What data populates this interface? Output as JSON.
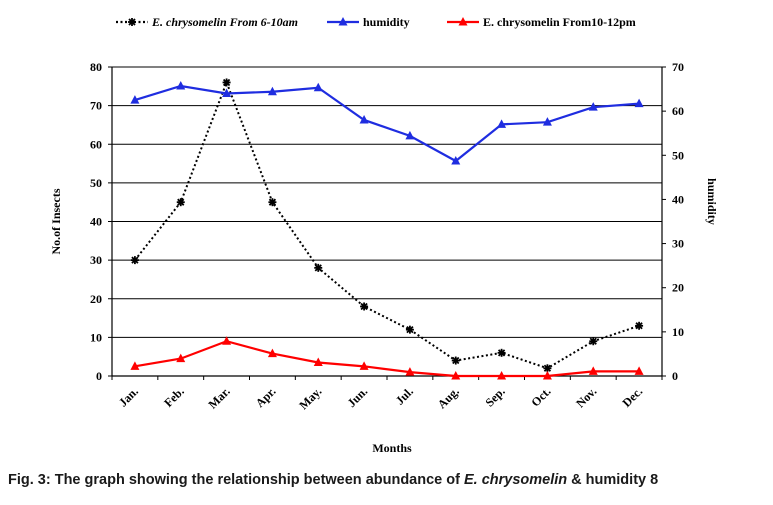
{
  "chart_data": {
    "type": "line",
    "categories": [
      "Jan.",
      "Feb.",
      "Mar.",
      "Apr.",
      "May.",
      "Jun.",
      "Jul.",
      "Aug.",
      "Sep.",
      "Oct.",
      "Nov.",
      "Dec."
    ],
    "series": [
      {
        "name": "E. chrysomelin From 6-10am",
        "axis": "left",
        "color": "#000000",
        "style": "dotted",
        "marker": "asterisk",
        "values": [
          30,
          45,
          76,
          45,
          28,
          18,
          12,
          4,
          6,
          2,
          9,
          13
        ]
      },
      {
        "name": "humidity",
        "axis": "right",
        "color": "#1f2de0",
        "style": "solid",
        "marker": "triangle",
        "values": [
          62.5,
          65.7,
          64,
          64.4,
          65.3,
          58,
          54.4,
          48.7,
          57,
          57.5,
          60.9,
          61.7
        ]
      },
      {
        "name": "E. chrysomelin From10-12pm",
        "axis": "left",
        "color": "#ff0000",
        "style": "solid",
        "marker": "triangle",
        "values": [
          2.5,
          4.5,
          9,
          5.8,
          3.5,
          2.5,
          1,
          0,
          0,
          0,
          1.2,
          1.2
        ]
      }
    ],
    "ylabel": "No.of Insects",
    "y2label": "humidity",
    "xlabel": "Months",
    "ylim": [
      0,
      80
    ],
    "y2lim": [
      0,
      70
    ],
    "yticks": [
      0,
      10,
      20,
      30,
      40,
      50,
      60,
      70,
      80
    ],
    "y2ticks": [
      0,
      10,
      20,
      30,
      40,
      50,
      60,
      70
    ],
    "grid": true,
    "legend_position": "top"
  },
  "caption": {
    "prefix": "Fig. 3: The graph showing the relationship between abundance of ",
    "species": "E. chrysomelin",
    "suffix": " & humidity 8"
  }
}
